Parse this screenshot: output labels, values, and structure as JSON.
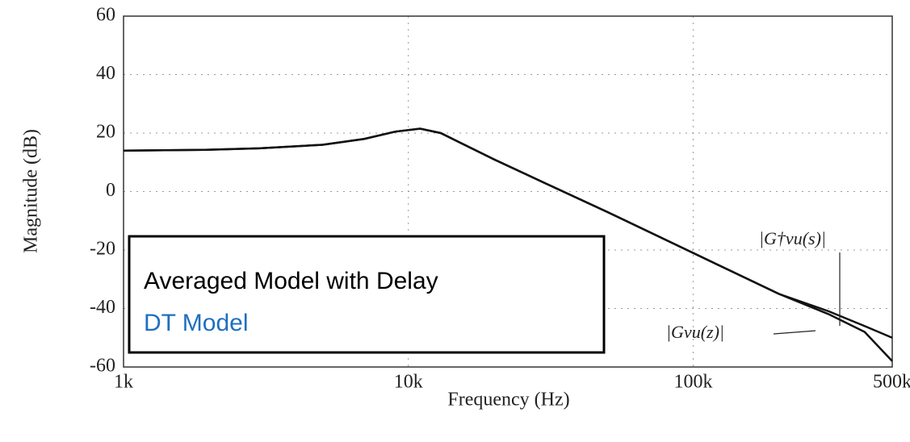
{
  "chart_data": {
    "type": "line",
    "x_label": "Frequency (Hz)",
    "y_label": "Magnitude (dB)",
    "x": [
      1000,
      2000,
      3000,
      5000,
      7000,
      9000,
      11000,
      13000,
      15000,
      20000,
      30000,
      50000,
      100000,
      200000,
      300000,
      400000,
      500000
    ],
    "series": [
      {
        "name": "Averaged Model with Delay",
        "color": "#111111",
        "label_color": "#000000",
        "values": [
          14,
          14.3,
          14.8,
          16,
          18,
          20.5,
          21.5,
          20,
          17,
          11,
          3,
          -7,
          -21,
          -35,
          -41,
          -46,
          -50
        ]
      },
      {
        "name": "DT Model",
        "color": "#111111",
        "label_color": "#1f6fbf",
        "values": [
          14,
          14.3,
          14.8,
          16,
          18,
          20.5,
          21.5,
          20,
          17,
          11,
          3,
          -7,
          -21,
          -35,
          -42,
          -48,
          -58
        ]
      }
    ],
    "annotations": [
      "|G†vu(s)|",
      "|Gvu(z)|"
    ],
    "xlog": true,
    "grid": true,
    "xlim": [
      1000,
      500000
    ],
    "xticks": [
      {
        "value": 1000,
        "label": "1k"
      },
      {
        "value": 10000,
        "label": "10k"
      },
      {
        "value": 100000,
        "label": "100k"
      },
      {
        "value": 500000,
        "label": "500k"
      }
    ],
    "ylim": [
      -60,
      60
    ],
    "yticks": [
      -60,
      -40,
      -20,
      0,
      20,
      40,
      60
    ]
  }
}
